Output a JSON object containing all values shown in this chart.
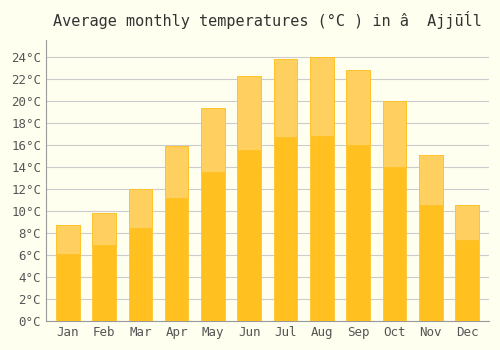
{
  "title": "Average monthly temperatures (°C ) in â  Ajjūĺl",
  "months": [
    "Jan",
    "Feb",
    "Mar",
    "Apr",
    "May",
    "Jun",
    "Jul",
    "Aug",
    "Sep",
    "Oct",
    "Nov",
    "Dec"
  ],
  "values": [
    8.7,
    9.8,
    12.0,
    15.9,
    19.3,
    22.2,
    23.8,
    24.0,
    22.8,
    20.0,
    15.1,
    10.5
  ],
  "bar_color_top": "#FFC020",
  "bar_color_bottom": "#FFD060",
  "background_color": "#FFFFF0",
  "grid_color": "#CCCCCC",
  "yticks": [
    0,
    2,
    4,
    6,
    8,
    10,
    12,
    14,
    16,
    18,
    20,
    22,
    24
  ],
  "ylim": [
    0,
    25.5
  ],
  "title_fontsize": 11,
  "tick_fontsize": 9,
  "font_family": "monospace"
}
